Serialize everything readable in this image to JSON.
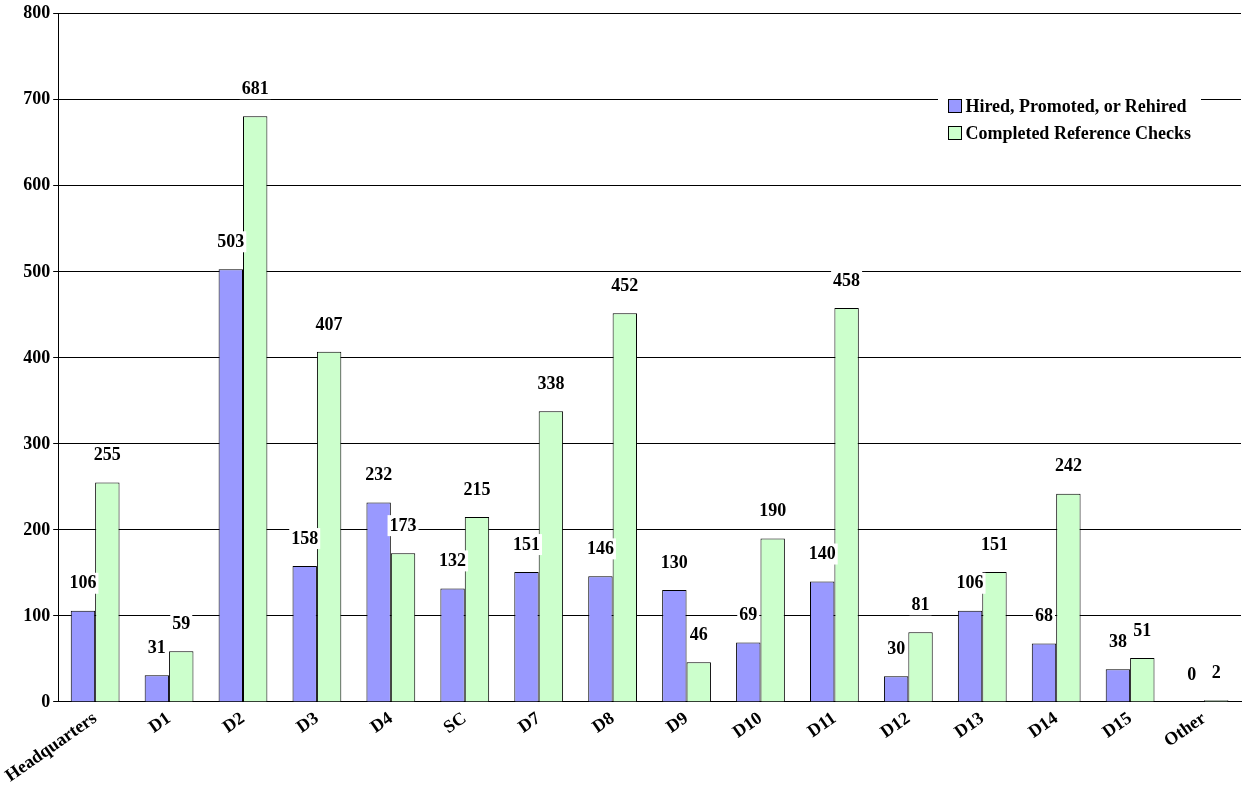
{
  "chart_data": {
    "type": "bar",
    "categories": [
      "Headquarters",
      "D1",
      "D2",
      "D3",
      "D4",
      "SC",
      "D7",
      "D8",
      "D9",
      "D10",
      "D11",
      "D12",
      "D13",
      "D14",
      "D15",
      "Other"
    ],
    "series": [
      {
        "name": "Hired, Promoted, or Rehired",
        "color": "#9999ff",
        "values": [
          106,
          31,
          503,
          158,
          232,
          132,
          151,
          146,
          130,
          69,
          140,
          30,
          106,
          68,
          38,
          0
        ]
      },
      {
        "name": "Completed Reference Checks",
        "color": "#ccffcc",
        "values": [
          255,
          59,
          681,
          407,
          173,
          215,
          338,
          452,
          46,
          190,
          458,
          81,
          151,
          242,
          51,
          2
        ]
      }
    ],
    "ylim": [
      0,
      800
    ],
    "yticks": [
      0,
      100,
      200,
      300,
      400,
      500,
      600,
      700,
      800
    ],
    "grid": "y",
    "legend": "top right",
    "data_labels": true
  }
}
